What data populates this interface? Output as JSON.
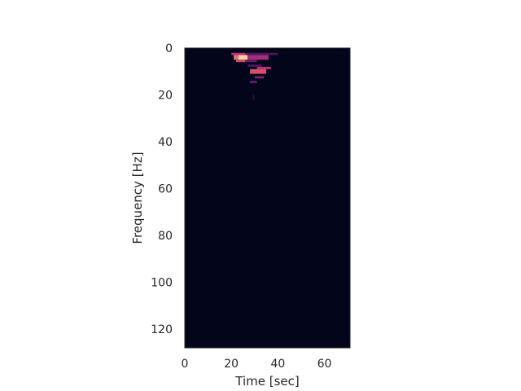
{
  "chart_data": {
    "type": "heatmap",
    "title": "",
    "xlabel": "Time [sec]",
    "ylabel": "Frequency [Hz]",
    "xlim": [
      0,
      71
    ],
    "ylim": [
      128,
      0
    ],
    "y_inverted": true,
    "xticks": [
      0,
      20,
      40,
      60
    ],
    "yticks": [
      0,
      20,
      40,
      60,
      80,
      100,
      120
    ],
    "colormap": "magma",
    "background_value": 0,
    "grid": false,
    "legend": "none",
    "colors": {
      "background": "#03051a",
      "low": "#3b0f51",
      "mid": "#a1307e",
      "high": "#e95462",
      "peak": "#fcd3a0"
    },
    "cells": [
      {
        "t0": 20,
        "t1": 26,
        "f0": 2,
        "f1": 3,
        "level": 0.55
      },
      {
        "t0": 26,
        "t1": 40,
        "f0": 2,
        "f1": 3,
        "level": 0.3
      },
      {
        "t0": 21,
        "t1": 23,
        "f0": 3,
        "f1": 5,
        "level": 0.8
      },
      {
        "t0": 23,
        "t1": 27,
        "f0": 3,
        "f1": 5,
        "level": 1.0
      },
      {
        "t0": 27,
        "t1": 36,
        "f0": 3,
        "f1": 5,
        "level": 0.5
      },
      {
        "t0": 22,
        "t1": 26,
        "f0": 5,
        "f1": 6,
        "level": 0.65
      },
      {
        "t0": 26,
        "t1": 31,
        "f0": 5,
        "f1": 6,
        "level": 0.35
      },
      {
        "t0": 27,
        "t1": 33,
        "f0": 7,
        "f1": 8,
        "level": 0.3
      },
      {
        "t0": 31,
        "t1": 37,
        "f0": 8,
        "f1": 9,
        "level": 0.55
      },
      {
        "t0": 28,
        "t1": 35,
        "f0": 9,
        "f1": 11,
        "level": 0.7
      },
      {
        "t0": 30,
        "t1": 34,
        "f0": 12,
        "f1": 13,
        "level": 0.4
      },
      {
        "t0": 28,
        "t1": 31,
        "f0": 14,
        "f1": 15,
        "level": 0.35
      },
      {
        "t0": 29,
        "t1": 30,
        "f0": 20,
        "f1": 22,
        "level": 0.15
      }
    ]
  }
}
